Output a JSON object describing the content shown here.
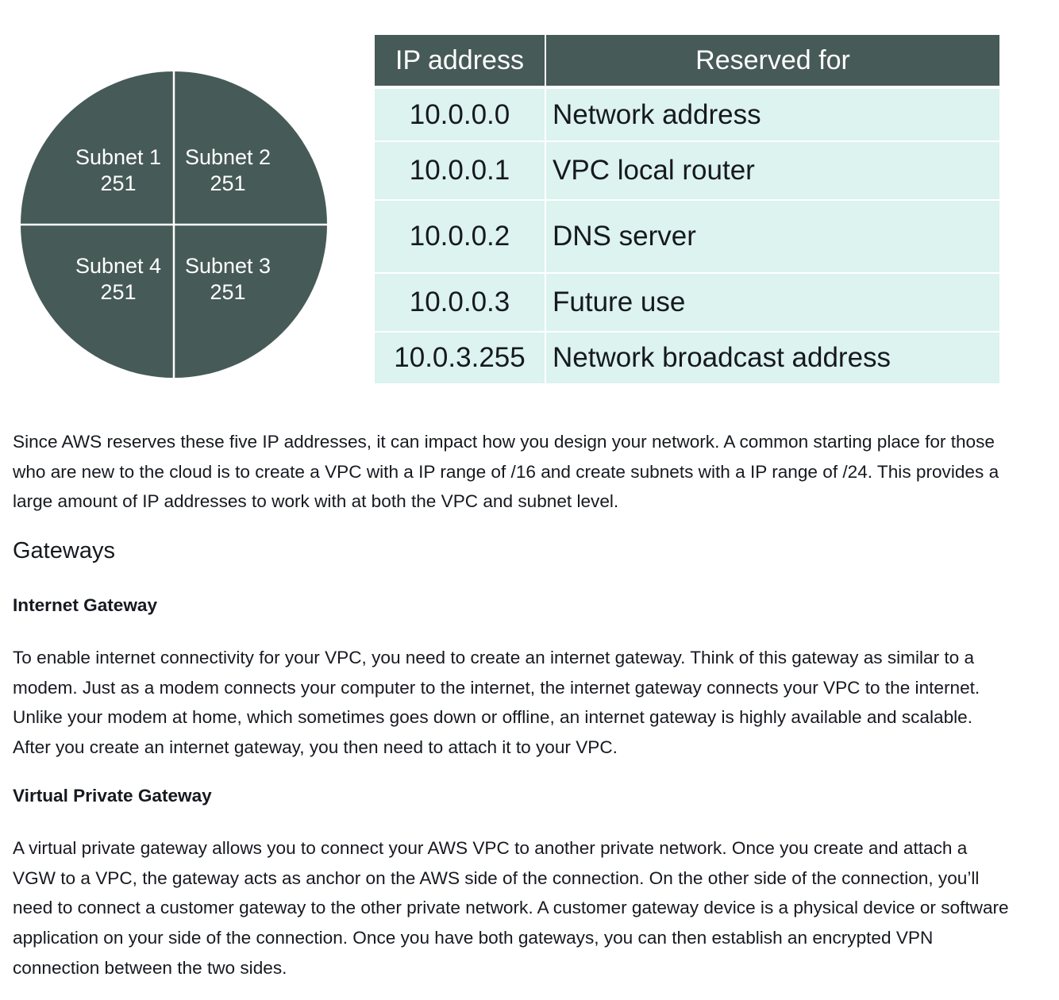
{
  "diagram": {
    "fill_color": "#465a57",
    "divider_color": "#ffffff",
    "quadrants": [
      {
        "name": "Subnet 1",
        "count": "251"
      },
      {
        "name": "Subnet 2",
        "count": "251"
      },
      {
        "name": "Subnet 4",
        "count": "251"
      },
      {
        "name": "Subnet 3",
        "count": "251"
      }
    ]
  },
  "table": {
    "header_color": "#465a57",
    "row_color": "#dcf3ef",
    "headers": [
      "IP address",
      "Reserved for"
    ],
    "rows": [
      {
        "ip": "10.0.0.0",
        "reserved": "Network address"
      },
      {
        "ip": "10.0.0.1",
        "reserved": "VPC local router"
      },
      {
        "ip": "10.0.0.2",
        "reserved": "DNS server"
      },
      {
        "ip": "10.0.0.3",
        "reserved": "Future use"
      },
      {
        "ip": "10.0.3.255",
        "reserved": "Network broadcast address"
      }
    ]
  },
  "article": {
    "intro": "Since AWS reserves these five IP addresses, it can impact how you design your network. A common starting place for those who are new to the cloud is to create a VPC with a IP range of /16 and create subnets with a IP range of /24. This provides a large amount of IP addresses to work with at both the VPC and subnet level.",
    "section_heading": "Gateways",
    "igw_heading": "Internet Gateway",
    "igw_text": "To enable internet connectivity for your VPC, you need to create an internet gateway. Think of this gateway as similar to a modem. Just as a modem connects your computer to the internet, the internet gateway connects your VPC to the internet. Unlike your modem at home, which sometimes goes down or offline, an internet gateway is highly available and scalable. After you create an internet gateway, you then need to attach it to your VPC.",
    "vgw_heading": "Virtual Private Gateway",
    "vgw_text": "A virtual private gateway allows you to connect your AWS VPC to another private network. Once you create and attach a VGW to a VPC, the gateway acts as anchor on the AWS side of the connection. On the other side of the connection, you’ll need to connect a customer gateway to the other private network. A customer gateway device is a physical device or software application on your side of the connection. Once you have both gateways, you can then establish an encrypted VPN connection between the two sides."
  }
}
